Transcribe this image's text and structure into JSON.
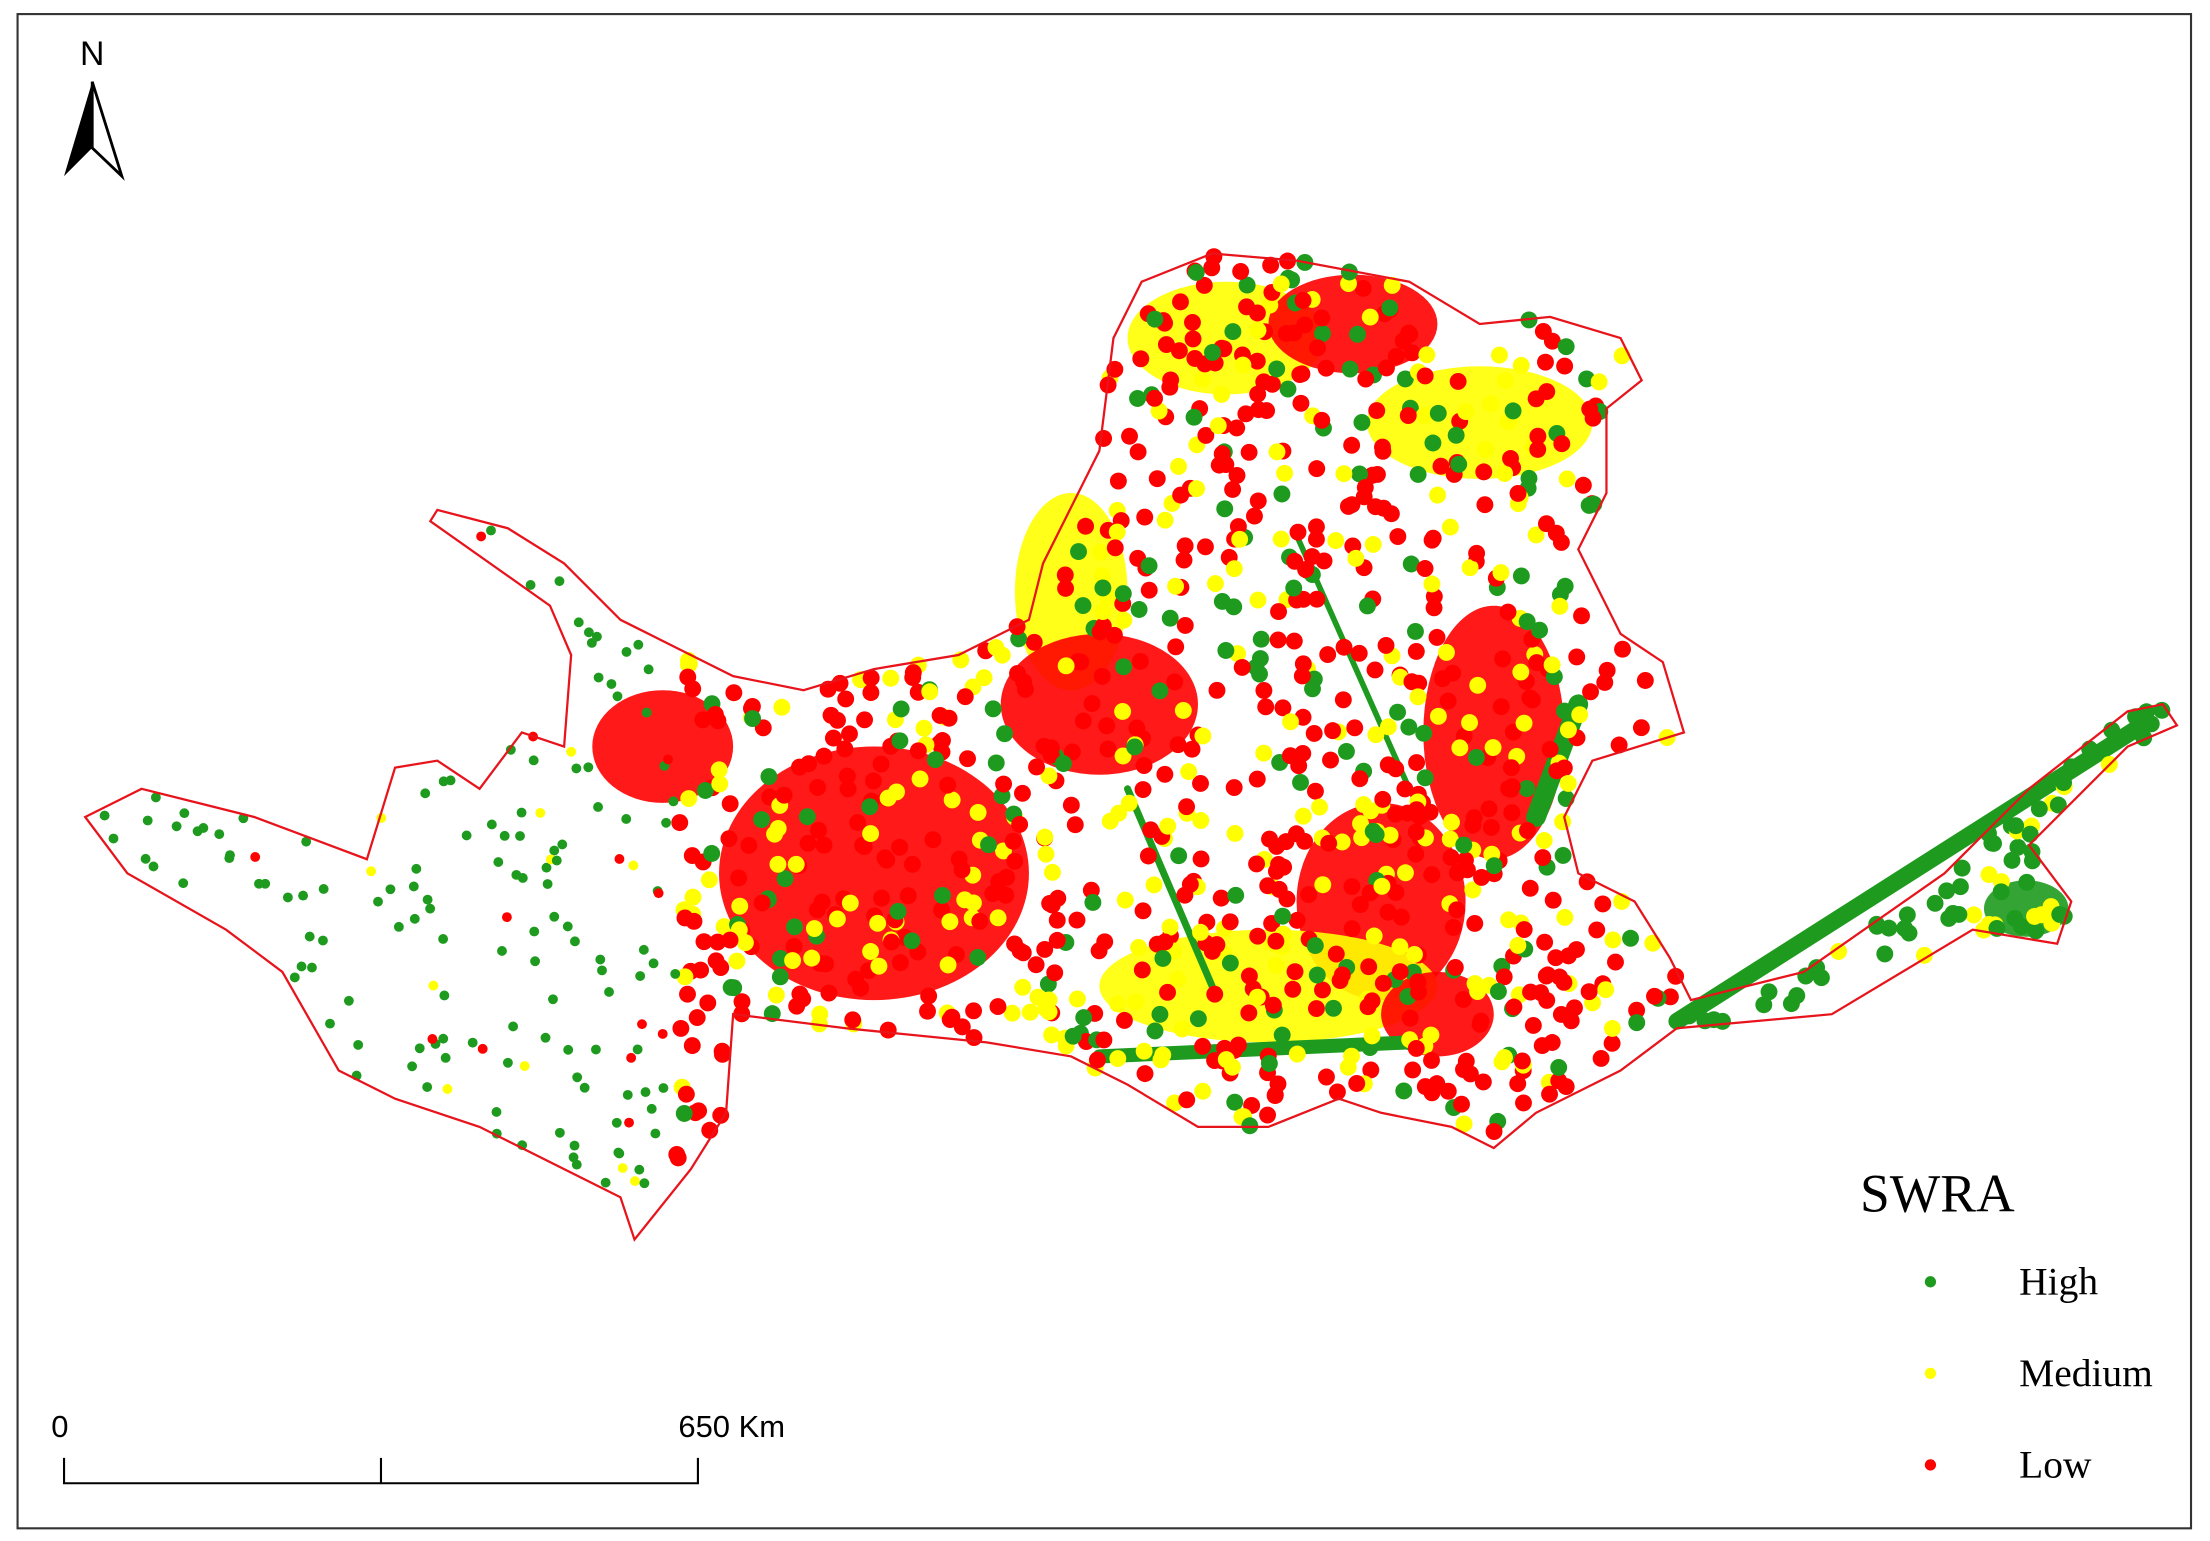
{
  "map": {
    "north": "N",
    "legend": {
      "title": "SWRA",
      "items": [
        {
          "label": "High",
          "color": "#1e9b1e"
        },
        {
          "label": "Medium",
          "color": "#ffff00"
        },
        {
          "label": "Low",
          "color": "#ff0000"
        }
      ]
    },
    "scale_bar": {
      "labels": [
        "0",
        "650 Km"
      ]
    }
  }
}
